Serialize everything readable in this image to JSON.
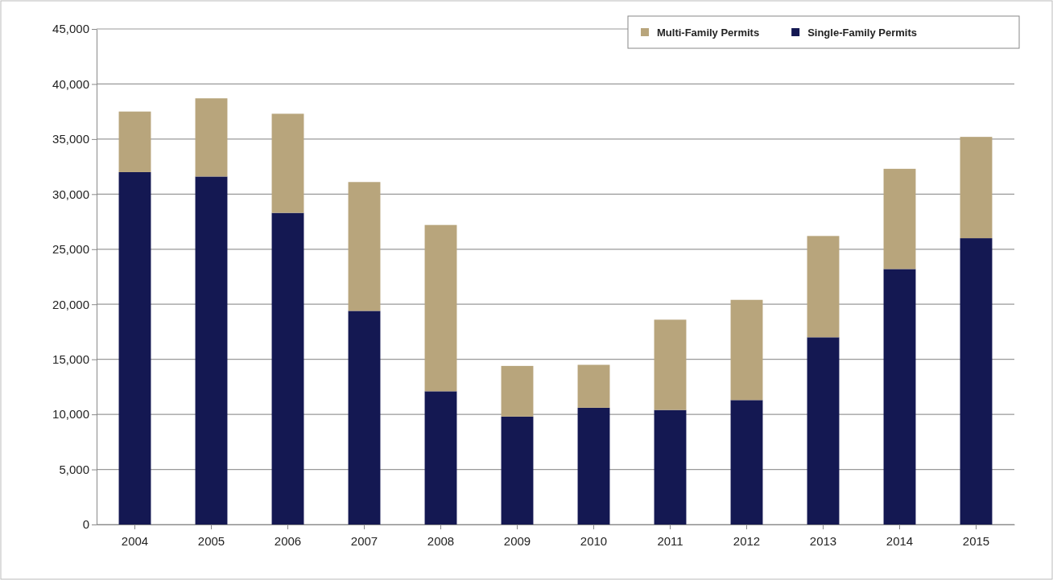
{
  "chart_data": {
    "type": "bar",
    "stacked": true,
    "categories": [
      "2004",
      "2005",
      "2006",
      "2007",
      "2008",
      "2009",
      "2010",
      "2011",
      "2012",
      "2013",
      "2014",
      "2015"
    ],
    "series": [
      {
        "name": "Single-Family Permits",
        "color": "#141852",
        "values": [
          32000,
          31600,
          28300,
          19400,
          12100,
          9800,
          10600,
          10400,
          11300,
          17000,
          23200,
          26000
        ]
      },
      {
        "name": "Multi-Family Permits",
        "color": "#b8a57c",
        "values": [
          5500,
          7100,
          9000,
          11700,
          15100,
          4600,
          3900,
          8200,
          9100,
          9200,
          9100,
          9200
        ]
      }
    ],
    "ylim": [
      0,
      45000
    ],
    "yticks": [
      {
        "value": 0,
        "label": "0"
      },
      {
        "value": 5000,
        "label": "5,000"
      },
      {
        "value": 10000,
        "label": "10,000"
      },
      {
        "value": 15000,
        "label": "15,000"
      },
      {
        "value": 20000,
        "label": "20,000"
      },
      {
        "value": 25000,
        "label": "25,000"
      },
      {
        "value": 30000,
        "label": "30,000"
      },
      {
        "value": 35000,
        "label": "35,000"
      },
      {
        "value": 40000,
        "label": "40,000"
      },
      {
        "value": 45000,
        "label": "45,000"
      }
    ],
    "grid": "y",
    "legend": "top right"
  }
}
